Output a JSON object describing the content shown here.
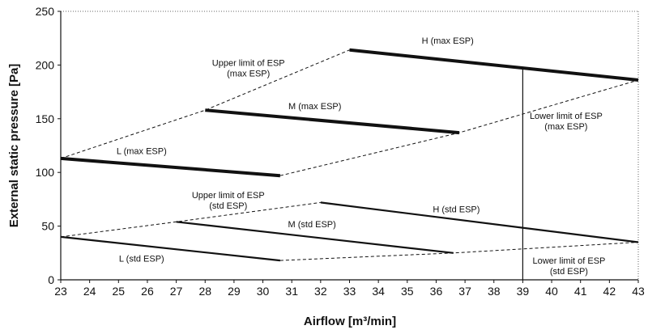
{
  "chart_data": {
    "type": "line",
    "title": "",
    "xlabel": "Airflow [m³/min]",
    "ylabel": "External static pressure [Pa]",
    "xlim": [
      23,
      43
    ],
    "ylim": [
      0,
      250
    ],
    "xticks": [
      "23",
      "24",
      "25",
      "26",
      "27",
      "28",
      "29",
      "30",
      "31",
      "32",
      "33",
      "34",
      "35",
      "36",
      "37",
      "38",
      "39",
      "40",
      "41",
      "42",
      "43"
    ],
    "yticks": [
      "0",
      "50",
      "100",
      "150",
      "200",
      "250"
    ],
    "grid": false,
    "series": [
      {
        "name": "H (max ESP)",
        "style": "thick",
        "points": [
          [
            33,
            214
          ],
          [
            43,
            186
          ]
        ]
      },
      {
        "name": "M (max ESP)",
        "style": "thick",
        "points": [
          [
            28,
            158
          ],
          [
            36.8,
            137
          ]
        ]
      },
      {
        "name": "L (max ESP)",
        "style": "thick",
        "points": [
          [
            23,
            113
          ],
          [
            30.6,
            97
          ]
        ]
      },
      {
        "name": "H (std ESP)",
        "style": "medium",
        "points": [
          [
            32,
            72
          ],
          [
            43,
            35
          ]
        ]
      },
      {
        "name": "M (std ESP)",
        "style": "medium",
        "points": [
          [
            27,
            54
          ],
          [
            36.6,
            25
          ]
        ]
      },
      {
        "name": "L (std ESP)",
        "style": "medium",
        "points": [
          [
            23,
            40
          ],
          [
            30.6,
            18
          ]
        ]
      },
      {
        "name": "Upper limit of ESP (max ESP)",
        "style": "dashed",
        "points": [
          [
            23,
            113
          ],
          [
            28,
            158
          ],
          [
            33,
            214
          ]
        ]
      },
      {
        "name": "Lower limit of ESP (max ESP)",
        "style": "dashed",
        "points": [
          [
            30.6,
            97
          ],
          [
            36.8,
            137
          ],
          [
            43,
            186
          ]
        ]
      },
      {
        "name": "Upper limit of ESP (std ESP)",
        "style": "dashed",
        "points": [
          [
            23,
            40
          ],
          [
            27,
            54
          ],
          [
            32,
            72
          ]
        ]
      },
      {
        "name": "Lower limit of ESP (std ESP)",
        "style": "dashed",
        "points": [
          [
            30.6,
            18
          ],
          [
            36.6,
            25
          ],
          [
            43,
            35
          ]
        ]
      },
      {
        "name": "39 marker",
        "style": "thin",
        "points": [
          [
            39,
            0
          ],
          [
            39,
            198
          ]
        ]
      }
    ],
    "annotations": [
      {
        "lines": [
          "H (max ESP)"
        ],
        "x": 36.4,
        "y": 220
      },
      {
        "lines": [
          "M (max ESP)"
        ],
        "x": 31.8,
        "y": 159
      },
      {
        "lines": [
          "L (max ESP)"
        ],
        "x": 25.8,
        "y": 117
      },
      {
        "lines": [
          "Upper limit of ESP",
          "(max ESP)"
        ],
        "x": 29.5,
        "y": 199
      },
      {
        "lines": [
          "Lower limit of ESP",
          "(max ESP)"
        ],
        "x": 40.5,
        "y": 150
      },
      {
        "lines": [
          "Upper limit of ESP",
          "(std ESP)"
        ],
        "x": 28.8,
        "y": 76
      },
      {
        "lines": [
          "M (std ESP)"
        ],
        "x": 31.7,
        "y": 49
      },
      {
        "lines": [
          "H (std ESP)"
        ],
        "x": 36.7,
        "y": 63
      },
      {
        "lines": [
          "L (std ESP)"
        ],
        "x": 25.8,
        "y": 17
      },
      {
        "lines": [
          "Lower limit of ESP",
          "(std ESP)"
        ],
        "x": 40.6,
        "y": 15
      }
    ]
  }
}
